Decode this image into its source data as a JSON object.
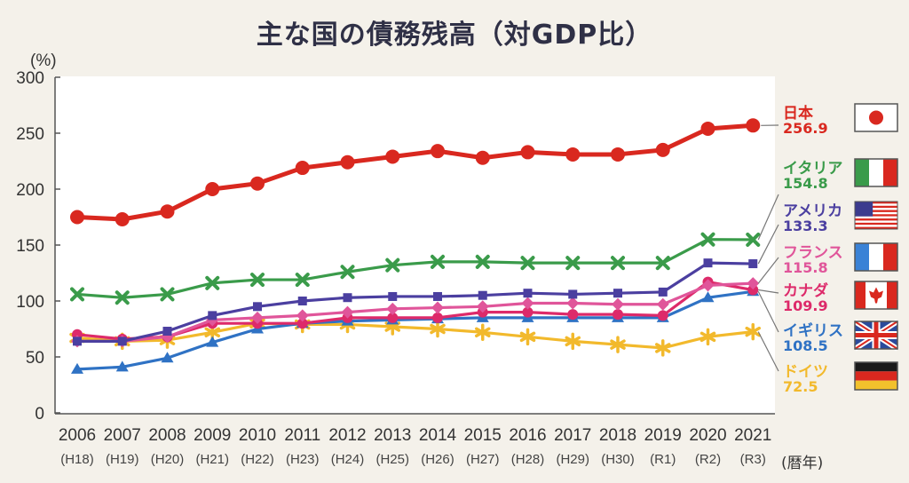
{
  "chart_data": {
    "type": "line",
    "title": "主な国の債務残高（対GDP比）",
    "ylabel": "(%)",
    "xlabel": "(暦年)",
    "ylim": [
      0,
      300
    ],
    "yticks": [
      0,
      50,
      100,
      150,
      200,
      250,
      300
    ],
    "grid": false,
    "legend": "right",
    "categories": [
      "2006",
      "2007",
      "2008",
      "2009",
      "2010",
      "2011",
      "2012",
      "2013",
      "2014",
      "2015",
      "2016",
      "2017",
      "2018",
      "2019",
      "2020",
      "2021"
    ],
    "subcategories": [
      "(H18)",
      "(H19)",
      "(H20)",
      "(H21)",
      "(H22)",
      "(H23)",
      "(H24)",
      "(H25)",
      "(H26)",
      "(H27)",
      "(H28)",
      "(H29)",
      "(H30)",
      "(R1)",
      "(R2)",
      "(R3)"
    ],
    "series": [
      {
        "name": "日本",
        "label_value": "256.9",
        "color": "#d9281f",
        "marker": "circle",
        "flag": "japan-flag-icon",
        "values": [
          175,
          173,
          180,
          200,
          205,
          219,
          224,
          229,
          234,
          228,
          233,
          231,
          231,
          235,
          254,
          256.9
        ]
      },
      {
        "name": "イタリア",
        "label_value": "154.8",
        "color": "#3a9b4a",
        "marker": "x",
        "flag": "italy-flag-icon",
        "values": [
          106,
          103,
          106,
          116,
          119,
          119,
          126,
          132,
          135,
          135,
          134,
          134,
          134,
          134,
          155,
          154.8
        ]
      },
      {
        "name": "アメリカ",
        "label_value": "133.3",
        "color": "#4b3fa0",
        "marker": "square",
        "flag": "usa-flag-icon",
        "values": [
          64,
          64,
          73,
          87,
          95,
          100,
          103,
          104,
          104,
          105,
          107,
          106,
          107,
          108,
          134,
          133.3
        ]
      },
      {
        "name": "フランス",
        "label_value": "115.8",
        "color": "#e0559a",
        "marker": "diamond",
        "flag": "france-flag-icon",
        "values": [
          64,
          64,
          68,
          83,
          85,
          87,
          90,
          93,
          94,
          95,
          98,
          98,
          97,
          97,
          114,
          115.8
        ]
      },
      {
        "name": "カナダ",
        "label_value": "109.9",
        "color": "#dd2a6a",
        "marker": "circle",
        "flag": "canada-flag-icon",
        "values": [
          70,
          66,
          68,
          80,
          80,
          80,
          85,
          85,
          85,
          90,
          90,
          88,
          88,
          87,
          117,
          109.9
        ]
      },
      {
        "name": "イギリス",
        "label_value": "108.5",
        "color": "#2f72c4",
        "marker": "triangle",
        "flag": "uk-flag-icon",
        "values": [
          39,
          41,
          49,
          63,
          75,
          80,
          82,
          83,
          84,
          85,
          85,
          85,
          85,
          85,
          103,
          108.5
        ]
      },
      {
        "name": "ドイツ",
        "label_value": "72.5",
        "color": "#f2b92c",
        "marker": "asterisk",
        "flag": "germany-flag-icon",
        "values": [
          67,
          64,
          65,
          72,
          80,
          79,
          79,
          77,
          75,
          72,
          68,
          64,
          61,
          58,
          68,
          72.5
        ]
      }
    ]
  }
}
